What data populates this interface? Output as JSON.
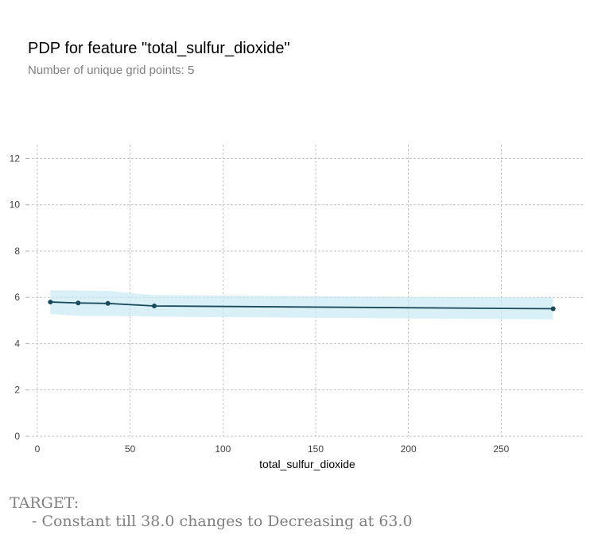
{
  "chart_data": {
    "type": "line",
    "title": "PDP for feature \"total_sulfur_dioxide\"",
    "subtitle": "Number of unique grid points: 5",
    "xlabel": "total_sulfur_dioxide",
    "ylabel": "",
    "xlim": [
      -3,
      294
    ],
    "ylim": [
      0,
      12.6
    ],
    "xticks": [
      0,
      50,
      100,
      150,
      200,
      250
    ],
    "yticks": [
      0,
      2,
      4,
      6,
      8,
      10,
      12
    ],
    "grid": true,
    "series": [
      {
        "x": [
          7,
          22,
          38,
          63,
          278
        ],
        "y": [
          5.8,
          5.76,
          5.74,
          5.63,
          5.51
        ],
        "lower": [
          5.28,
          5.2,
          5.2,
          5.17,
          5.05
        ],
        "upper": [
          6.31,
          6.3,
          6.28,
          6.1,
          5.99
        ],
        "color": "#1a4a5b",
        "band_color": "#c9e9f2"
      }
    ]
  },
  "footer": {
    "heading": "TARGET:",
    "note": "- Constant till 38.0 changes to Decreasing at 63.0"
  }
}
